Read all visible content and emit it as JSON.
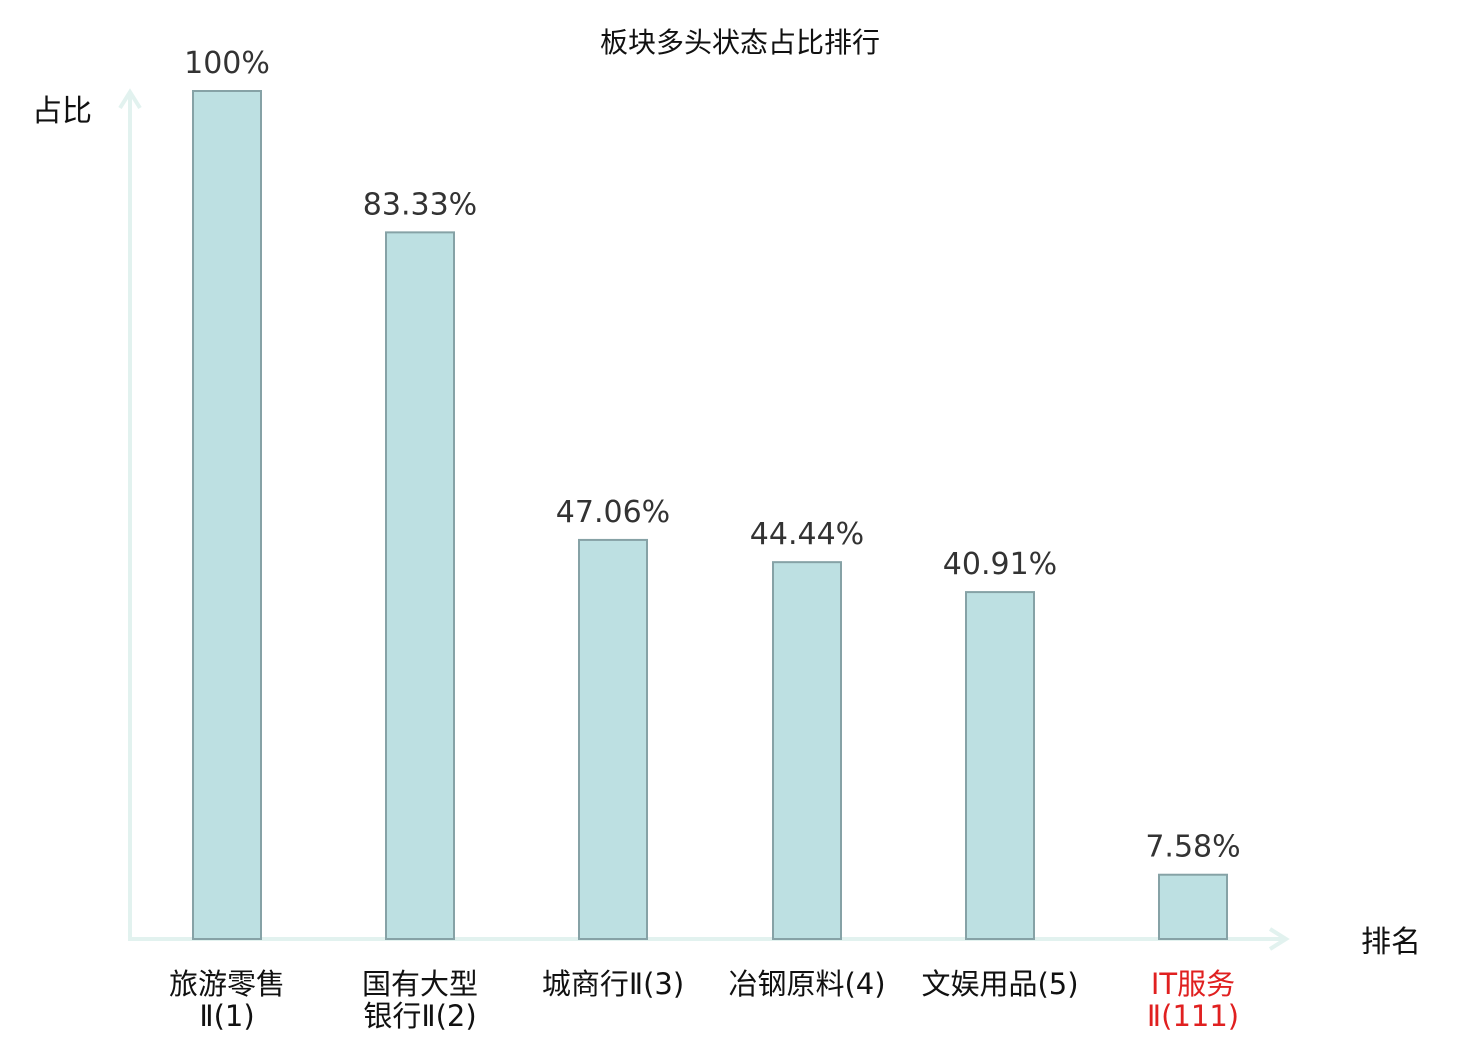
{
  "chart_data": {
    "type": "bar",
    "title": "板块多头状态占比排行",
    "ylabel": "占比",
    "xlabel": "排名",
    "ylim": [
      0,
      100
    ],
    "grid": false,
    "categories": [
      [
        "旅游零售",
        "Ⅱ(1)"
      ],
      [
        "国有大型",
        "银行Ⅱ(2)"
      ],
      [
        "城商行Ⅱ(3)"
      ],
      [
        "冶钢原料(4)"
      ],
      [
        "文娱用品(5)"
      ],
      [
        "IT服务",
        "Ⅱ(111)"
      ]
    ],
    "values": [
      100,
      83.33,
      47.06,
      44.44,
      40.91,
      7.58
    ],
    "value_labels": [
      "100%",
      "83.33%",
      "47.06%",
      "44.44%",
      "40.91%",
      "7.58%"
    ],
    "highlight_index": 5,
    "colors": {
      "bar_fill": "#bde0e2",
      "bar_stroke": "#86a2a6",
      "axis": "#e2f2ef",
      "text": "#111111",
      "value_text": "#333333",
      "highlight_text": "#e02020"
    }
  }
}
